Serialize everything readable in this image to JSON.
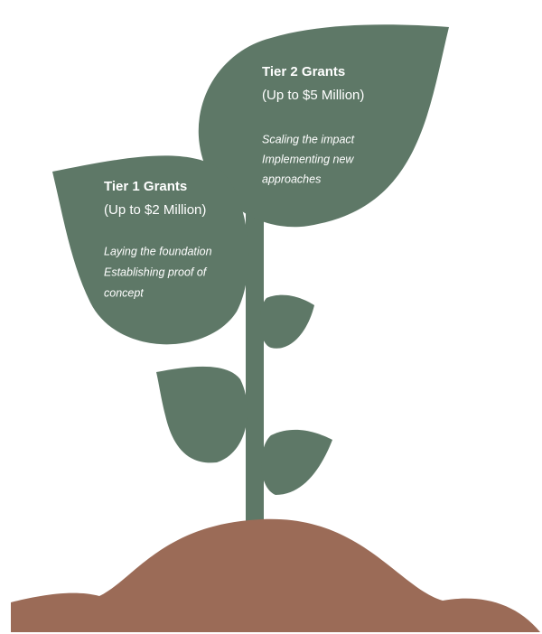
{
  "tiers": [
    {
      "title": "Tier 1 Grants",
      "amount": "(Up to $2 Million)",
      "description": [
        "Laying the foundation",
        "Establishing proof of",
        "concept"
      ]
    },
    {
      "title": "Tier 2 Grants",
      "amount": "(Up to $5 Million)",
      "description": [
        "Scaling the impact",
        "Implementing new",
        "approaches"
      ]
    }
  ]
}
